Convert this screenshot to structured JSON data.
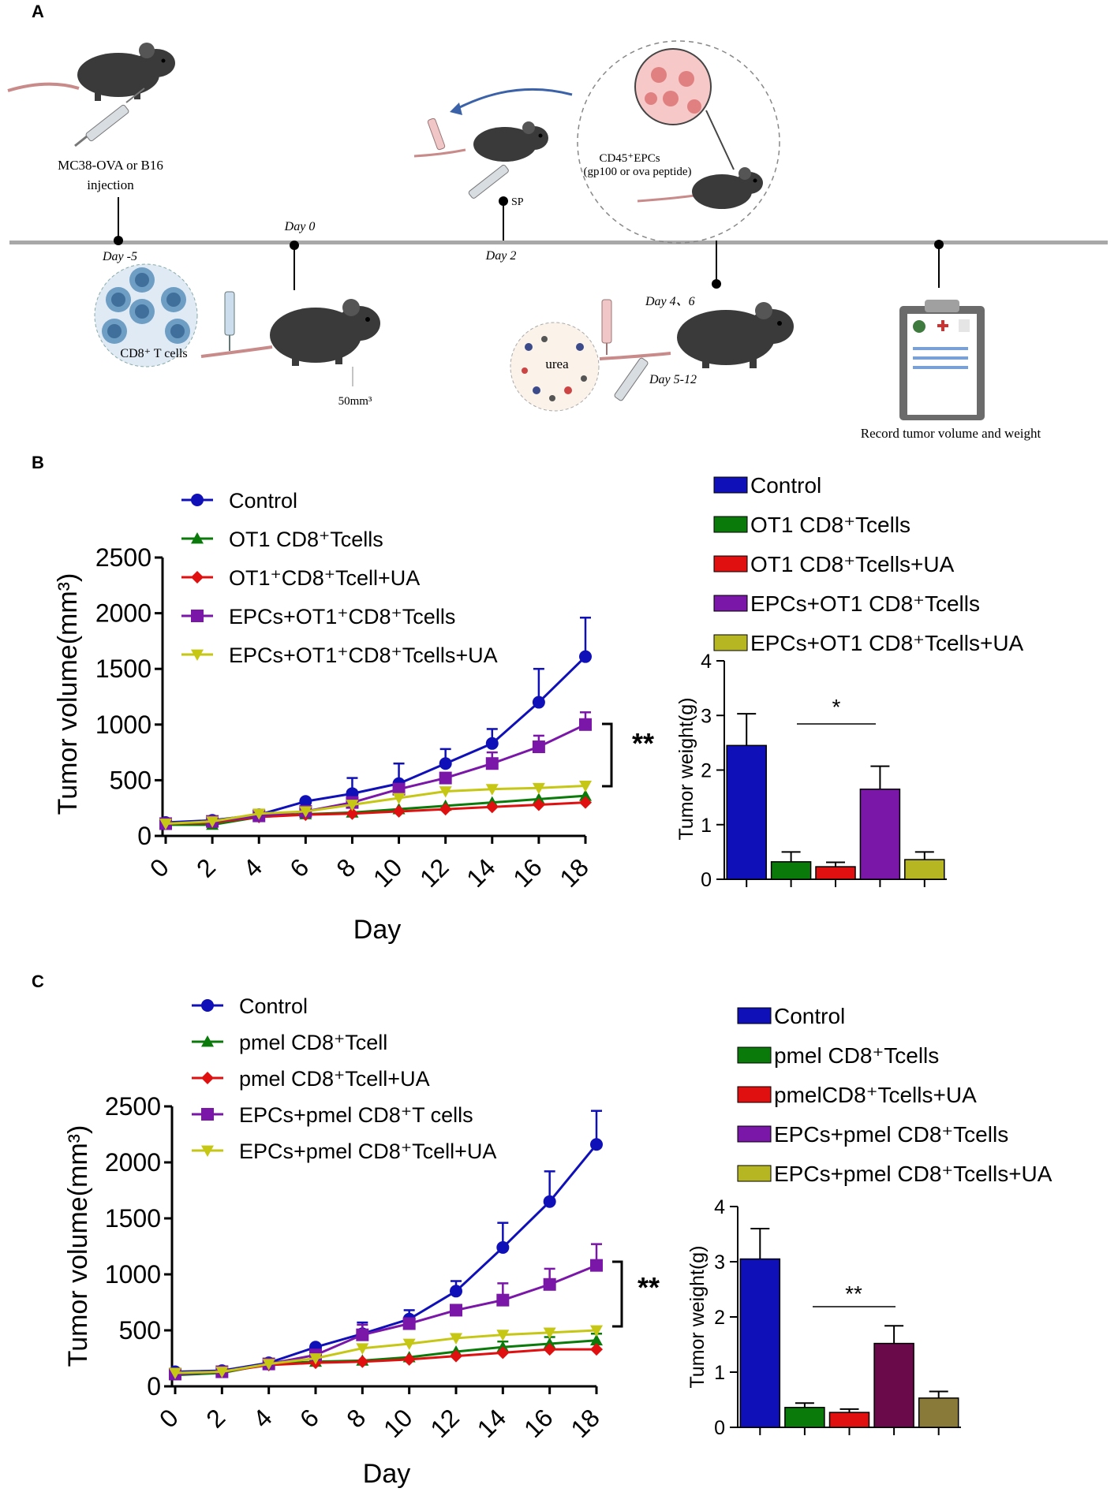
{
  "panel_labels": {
    "a": "A",
    "b": "B",
    "c": "C"
  },
  "schematic": {
    "injection_line1": "MC38-OVA or B16",
    "injection_line2": "injection",
    "day_minus5": "Day -5",
    "day_0": "Day 0",
    "day_2": "Day 2",
    "sp": "SP",
    "epcs_line1": "CD45⁺EPCs",
    "epcs_line2": "(gp100 or ova peptide)",
    "cd8_cells": "CD8⁺ T cells",
    "size": "50mm³",
    "day_4_6": "Day 4、6",
    "urea": "urea",
    "day_5_12": "Day 5-12",
    "record": "Record tumor volume and weight"
  },
  "colors": {
    "blue": "#1010b8",
    "green": "#0a7a0a",
    "red": "#e01010",
    "purple": "#7a16a8",
    "yellow": "#c6c614",
    "dark_yellow": "#b6b623",
    "maroon": "#6a0a4a",
    "olive": "#8a7a3a"
  },
  "chart_data": [
    {
      "id": "B_volume",
      "type": "line",
      "ylabel": "Tumor volume(mm³)",
      "xlabel": "Day",
      "xlim": [
        0,
        18
      ],
      "ylim": [
        0,
        2500
      ],
      "xticks": [
        "0",
        "2",
        "4",
        "6",
        "8",
        "10",
        "12",
        "14",
        "16",
        "18"
      ],
      "yticks": [
        "0",
        "500",
        "1000",
        "1500",
        "2000",
        "2500"
      ],
      "x": [
        0,
        2,
        4,
        6,
        8,
        10,
        12,
        14,
        16,
        18
      ],
      "significance": "**",
      "series": [
        {
          "name": "Control",
          "marker": "circle",
          "color": "#1010b8",
          "values": [
            120,
            140,
            190,
            310,
            380,
            470,
            650,
            830,
            1200,
            1610
          ],
          "err": [
            0,
            0,
            0,
            0,
            140,
            180,
            130,
            130,
            300,
            350
          ]
        },
        {
          "name": "OT1 CD8⁺Tcells",
          "marker": "triangle",
          "color": "#0a7a0a",
          "values": [
            100,
            100,
            170,
            195,
            210,
            240,
            270,
            300,
            330,
            360
          ],
          "err": [
            0,
            0,
            0,
            0,
            0,
            0,
            0,
            0,
            0,
            0
          ]
        },
        {
          "name": "OT1⁺CD8⁺Tcell+UA",
          "marker": "diamond",
          "color": "#e01010",
          "values": [
            110,
            120,
            170,
            190,
            200,
            220,
            240,
            260,
            280,
            300
          ],
          "err": [
            0,
            0,
            0,
            0,
            0,
            0,
            0,
            0,
            0,
            0
          ]
        },
        {
          "name": "EPCs+OT1⁺CD8⁺Tcells",
          "marker": "square",
          "color": "#7a16a8",
          "values": [
            110,
            130,
            180,
            220,
            300,
            420,
            520,
            650,
            800,
            1000
          ],
          "err": [
            0,
            0,
            0,
            0,
            0,
            0,
            0,
            100,
            100,
            110
          ]
        },
        {
          "name": "EPCs+OT1⁺CD8⁺Tcells+UA",
          "marker": "tri_down",
          "color": "#c6c614",
          "values": [
            110,
            130,
            200,
            220,
            280,
            340,
            400,
            420,
            430,
            450
          ],
          "err": [
            0,
            0,
            30,
            0,
            0,
            0,
            0,
            0,
            0,
            0
          ]
        }
      ]
    },
    {
      "id": "B_weight",
      "type": "bar",
      "ylabel": "Tumor weight(g)",
      "ylim": [
        0,
        4
      ],
      "yticks": [
        "0",
        "1",
        "2",
        "3",
        "4"
      ],
      "significance": "*",
      "legend": [
        "Control",
        "OT1 CD8⁺Tcells",
        "OT1 CD8⁺Tcells+UA",
        "EPCs+OT1 CD8⁺Tcells",
        "EPCs+OT1 CD8⁺Tcells+UA"
      ],
      "values": [
        2.45,
        0.32,
        0.23,
        1.65,
        0.36
      ],
      "err": [
        0.58,
        0.18,
        0.08,
        0.42,
        0.14
      ],
      "colors": [
        "#1010b8",
        "#0a7a0a",
        "#e01010",
        "#7a16a8",
        "#b6b623"
      ]
    },
    {
      "id": "C_volume",
      "type": "line",
      "ylabel": "Tumor volume(mm³)",
      "xlabel": "Day",
      "xlim": [
        0,
        18
      ],
      "ylim": [
        0,
        2500
      ],
      "xticks": [
        "0",
        "2",
        "4",
        "6",
        "8",
        "10",
        "12",
        "14",
        "16",
        "18"
      ],
      "yticks": [
        "0",
        "500",
        "1000",
        "1500",
        "2000",
        "2500"
      ],
      "x": [
        0,
        2,
        4,
        6,
        8,
        10,
        12,
        14,
        16,
        18
      ],
      "significance": "**",
      "series": [
        {
          "name": "Control",
          "marker": "circle",
          "color": "#1010b8",
          "values": [
            130,
            140,
            210,
            350,
            470,
            600,
            850,
            1240,
            1650,
            2160
          ],
          "err": [
            0,
            0,
            0,
            0,
            100,
            80,
            90,
            220,
            270,
            300
          ]
        },
        {
          "name": "pmel CD8⁺Tcell",
          "marker": "triangle",
          "color": "#0a7a0a",
          "values": [
            100,
            120,
            200,
            220,
            230,
            260,
            310,
            350,
            380,
            410
          ],
          "err": [
            0,
            0,
            0,
            0,
            0,
            0,
            0,
            50,
            60,
            60
          ]
        },
        {
          "name": "pmel CD8⁺Tcell+UA",
          "marker": "diamond",
          "color": "#e01010",
          "values": [
            110,
            130,
            190,
            210,
            220,
            240,
            270,
            300,
            330,
            330
          ],
          "err": [
            0,
            0,
            0,
            0,
            0,
            0,
            0,
            0,
            0,
            0
          ]
        },
        {
          "name": "EPCs+pmel CD8⁺T cells",
          "marker": "square",
          "color": "#7a16a8",
          "values": [
            110,
            130,
            200,
            280,
            460,
            560,
            680,
            770,
            910,
            1080
          ],
          "err": [
            0,
            0,
            0,
            0,
            90,
            0,
            0,
            150,
            140,
            190
          ]
        },
        {
          "name": "EPCs+pmel CD8⁺Tcell+UA",
          "marker": "tri_down",
          "color": "#c6c614",
          "values": [
            120,
            130,
            200,
            250,
            340,
            380,
            430,
            460,
            480,
            500
          ],
          "err": [
            0,
            0,
            0,
            0,
            0,
            0,
            0,
            0,
            0,
            0
          ]
        }
      ]
    },
    {
      "id": "C_weight",
      "type": "bar",
      "ylabel": "Tumor weight(g)",
      "ylim": [
        0,
        4
      ],
      "yticks": [
        "0",
        "1",
        "2",
        "3",
        "4"
      ],
      "significance": "**",
      "legend": [
        "Control",
        "pmel CD8⁺Tcells",
        "pmelCD8⁺Tcells+UA",
        "EPCs+pmel CD8⁺Tcells",
        "EPCs+pmel CD8⁺Tcells+UA"
      ],
      "values": [
        3.05,
        0.36,
        0.27,
        1.52,
        0.53
      ],
      "err": [
        0.55,
        0.08,
        0.06,
        0.32,
        0.12
      ],
      "colors": [
        "#1010b8",
        "#0a7a0a",
        "#e01010",
        "#6a0a4a",
        "#8a7a3a"
      ],
      "legend_colors": [
        "#1010b8",
        "#0a7a0a",
        "#e01010",
        "#7a16a8",
        "#b6b623"
      ]
    }
  ]
}
